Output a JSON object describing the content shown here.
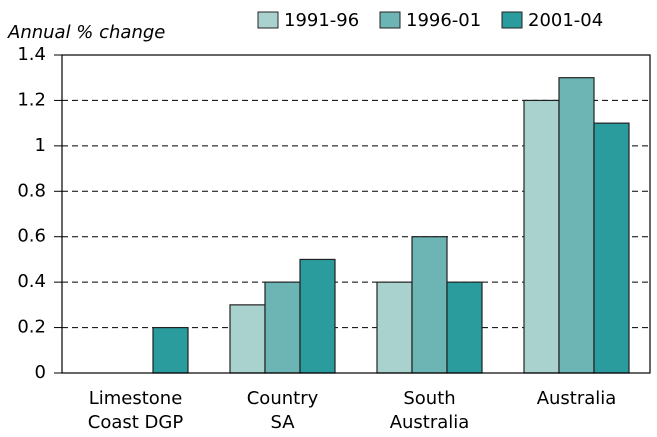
{
  "chart_data": {
    "type": "bar",
    "y_label": "Annual % change",
    "categories": [
      [
        "Limestone",
        "Coast DGP"
      ],
      [
        "Country",
        "SA"
      ],
      [
        "South",
        "Australia"
      ],
      [
        "Australia"
      ]
    ],
    "series": [
      {
        "name": "1991-96",
        "color": "#a9d2cf",
        "values": [
          0,
          0.3,
          0.4,
          1.2
        ]
      },
      {
        "name": "1996-01",
        "color": "#6cb5b4",
        "values": [
          0,
          0.4,
          0.6,
          1.3
        ]
      },
      {
        "name": "2001-04",
        "color": "#2a9c9e",
        "values": [
          0.2,
          0.5,
          0.4,
          1.1
        ]
      }
    ],
    "ylim": [
      0,
      1.4
    ],
    "yticks": [
      0,
      0.2,
      0.4,
      0.6,
      0.8,
      1,
      1.2,
      1.4
    ],
    "grid": true
  }
}
